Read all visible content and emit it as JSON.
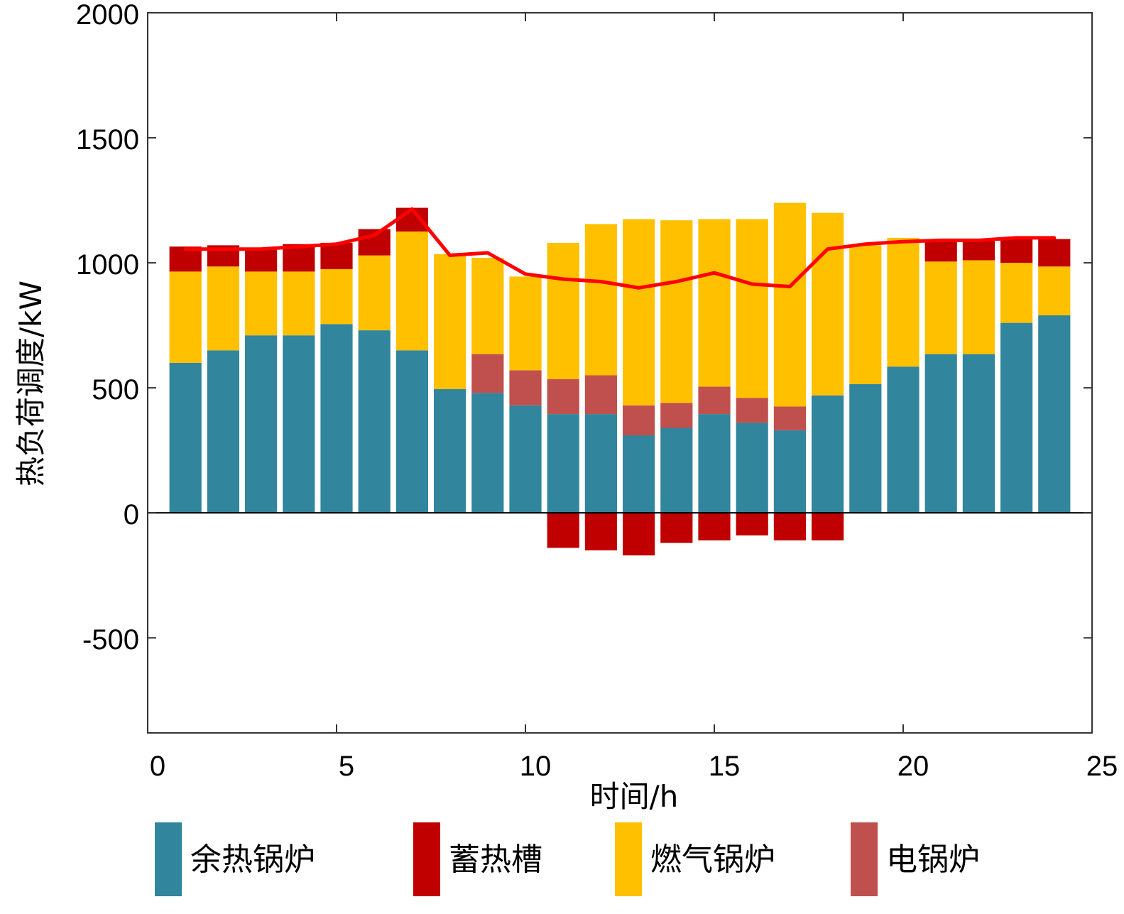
{
  "chart_data": {
    "type": "bar",
    "stacked": true,
    "xlabel": "时间/h",
    "ylabel": "热负荷调度/kW",
    "xlim": [
      0,
      25
    ],
    "ylim": [
      -880,
      2000
    ],
    "xticks": [
      0,
      5,
      10,
      15,
      20,
      25
    ],
    "yticks": [
      -500,
      0,
      500,
      1000,
      1500,
      2000
    ],
    "grid": false,
    "legend_position": "bottom",
    "hours": [
      1,
      2,
      3,
      4,
      5,
      6,
      7,
      8,
      9,
      10,
      11,
      12,
      13,
      14,
      15,
      16,
      17,
      18,
      19,
      20,
      21,
      22,
      23,
      24
    ],
    "series": [
      {
        "name": "余热锅炉",
        "color": "#31859c",
        "values": [
          600,
          650,
          710,
          710,
          755,
          730,
          650,
          495,
          480,
          430,
          395,
          395,
          310,
          340,
          395,
          360,
          330,
          470,
          515,
          585,
          635,
          635,
          760,
          790
        ]
      },
      {
        "name": "电锅炉",
        "color": "#c0504d",
        "values": [
          0,
          0,
          0,
          0,
          0,
          0,
          0,
          0,
          155,
          140,
          140,
          155,
          120,
          100,
          110,
          100,
          95,
          0,
          0,
          0,
          0,
          0,
          0,
          0
        ]
      },
      {
        "name": "燃气锅炉",
        "color": "#ffc000",
        "values": [
          365,
          335,
          255,
          255,
          220,
          300,
          475,
          540,
          385,
          375,
          545,
          605,
          745,
          730,
          670,
          715,
          815,
          730,
          555,
          515,
          370,
          375,
          240,
          195
        ]
      },
      {
        "name": "蓄热槽",
        "color": "#c00000",
        "values": [
          100,
          85,
          95,
          110,
          105,
          105,
          95,
          0,
          0,
          0,
          -140,
          -150,
          -170,
          -120,
          -110,
          -90,
          -110,
          -110,
          0,
          0,
          85,
          85,
          100,
          110
        ]
      }
    ],
    "load_line": {
      "color": "#ff0000",
      "values": [
        1055,
        1055,
        1055,
        1065,
        1075,
        1110,
        1215,
        1030,
        1040,
        955,
        935,
        925,
        900,
        925,
        960,
        915,
        905,
        1055,
        1075,
        1085,
        1090,
        1090,
        1100,
        1100
      ]
    }
  }
}
